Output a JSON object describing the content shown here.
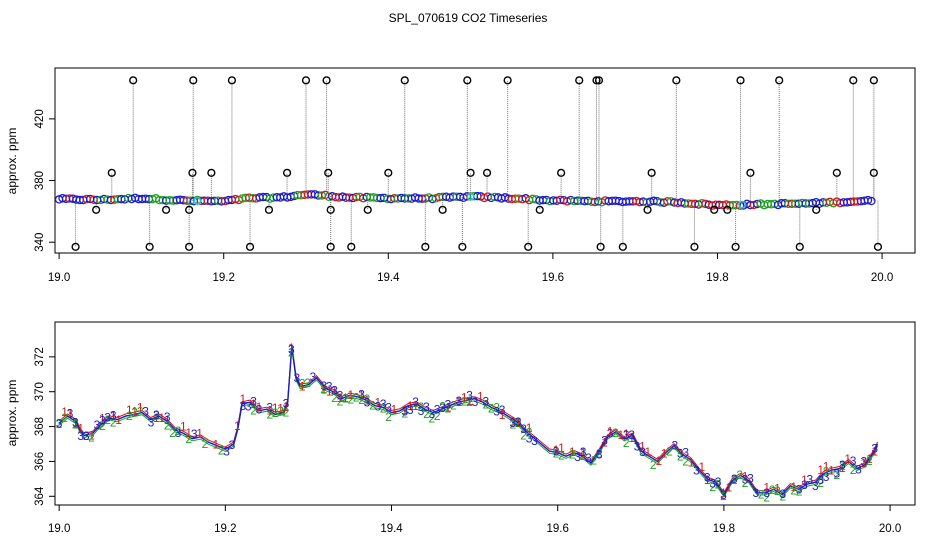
{
  "figure": {
    "title": "SPL_070619  CO2 Timeseries"
  },
  "chart_data": [
    {
      "type": "scatter",
      "panel": "top",
      "ylabel": "approx. ppm",
      "xlabel": "",
      "xlim": [
        18.995,
        20.04
      ],
      "ylim": [
        333,
        453
      ],
      "x_ticks": [
        19.0,
        19.2,
        19.4,
        19.6,
        19.8,
        20.0
      ],
      "x_tick_labels": [
        "19.0",
        "19.2",
        "19.4",
        "19.6",
        "19.8",
        "20.0"
      ],
      "y_ticks": [
        340,
        380,
        420
      ],
      "y_tick_labels": [
        "340",
        "380",
        "420"
      ],
      "baseline": {
        "x": [
          19.0,
          19.05,
          19.1,
          19.15,
          19.2,
          19.23,
          19.27,
          19.3,
          19.33,
          19.35,
          19.4,
          19.45,
          19.5,
          19.55,
          19.6,
          19.65,
          19.7,
          19.75,
          19.8,
          19.85,
          19.9,
          19.95,
          19.99
        ],
        "y": [
          368,
          367.5,
          368.5,
          367,
          366.5,
          368.5,
          369,
          371,
          370,
          369,
          368.5,
          368.5,
          369.5,
          368.5,
          367,
          366.5,
          366.5,
          366,
          364,
          364.5,
          365,
          366,
          367
        ]
      },
      "outliers_high_x": [
        19.09,
        19.163,
        19.21,
        19.3,
        19.325,
        19.42,
        19.496,
        19.545,
        19.632,
        19.653,
        19.656,
        19.75,
        19.828,
        19.875,
        19.965,
        19.99
      ],
      "outliers_high_y": 445,
      "outliers_low_x": [
        19.02,
        19.11,
        19.158,
        19.232,
        19.33,
        19.355,
        19.445,
        19.49,
        19.57,
        19.658,
        19.685,
        19.772,
        19.822,
        19.9,
        19.995
      ],
      "outliers_low_y": 337,
      "outliers_mid_x": [
        19.064,
        19.162,
        19.185,
        19.277,
        19.327,
        19.4,
        19.5,
        19.52,
        19.61,
        19.72,
        19.84,
        19.945,
        19.99
      ],
      "outliers_mid_y": 385,
      "outliers_near_x": [
        19.045,
        19.13,
        19.158,
        19.255,
        19.33,
        19.375,
        19.466,
        19.584,
        19.715,
        19.796,
        19.812,
        19.92
      ],
      "outliers_near_y": 361
    },
    {
      "type": "scatter",
      "panel": "bottom",
      "ylabel": "approx. ppm",
      "xlabel": "",
      "xlim": [
        18.995,
        20.03
      ],
      "ylim": [
        363.5,
        374.0
      ],
      "x_ticks": [
        19.0,
        19.2,
        19.4,
        19.6,
        19.8,
        20.0
      ],
      "x_tick_labels": [
        "19.0",
        "19.2",
        "19.4",
        "19.6",
        "19.8",
        "20.0"
      ],
      "y_ticks": [
        364,
        366,
        368,
        370,
        372
      ],
      "y_tick_labels": [
        "364",
        "366",
        "368",
        "370",
        "372"
      ],
      "series": [
        {
          "name": "1",
          "color": "#d11a1a"
        },
        {
          "name": "2",
          "color": "#1fa21f"
        },
        {
          "name": "3",
          "color": "#1c1ccc"
        }
      ],
      "x": [
        19.0,
        19.01,
        19.02,
        19.025,
        19.03,
        19.04,
        19.05,
        19.06,
        19.07,
        19.08,
        19.09,
        19.1,
        19.11,
        19.12,
        19.13,
        19.14,
        19.15,
        19.16,
        19.17,
        19.18,
        19.19,
        19.2,
        19.21,
        19.215,
        19.22,
        19.23,
        19.24,
        19.25,
        19.26,
        19.27,
        19.275,
        19.28,
        19.285,
        19.29,
        19.3,
        19.31,
        19.32,
        19.33,
        19.335,
        19.34,
        19.35,
        19.36,
        19.37,
        19.38,
        19.39,
        19.4,
        19.41,
        19.42,
        19.43,
        19.44,
        19.45,
        19.46,
        19.47,
        19.48,
        19.49,
        19.5,
        19.51,
        19.52,
        19.53,
        19.54,
        19.55,
        19.56,
        19.57,
        19.58,
        19.59,
        19.6,
        19.61,
        19.62,
        19.63,
        19.64,
        19.65,
        19.66,
        19.67,
        19.68,
        19.69,
        19.7,
        19.71,
        19.72,
        19.73,
        19.74,
        19.75,
        19.76,
        19.77,
        19.78,
        19.79,
        19.8,
        19.81,
        19.82,
        19.83,
        19.84,
        19.85,
        19.86,
        19.87,
        19.88,
        19.89,
        19.9,
        19.91,
        19.92,
        19.93,
        19.94,
        19.95,
        19.96,
        19.97,
        19.98,
        19.985
      ],
      "y": [
        368.2,
        368.6,
        368.3,
        367.8,
        367.5,
        367.6,
        368.1,
        368.5,
        368.4,
        368.6,
        368.7,
        368.8,
        368.4,
        368.6,
        368.3,
        367.8,
        367.6,
        367.3,
        367.4,
        367.1,
        366.9,
        366.7,
        367.0,
        367.9,
        369.3,
        369.4,
        368.9,
        369.0,
        368.7,
        368.8,
        369.4,
        372.6,
        370.8,
        370.3,
        370.4,
        370.8,
        370.2,
        370.0,
        369.8,
        369.6,
        369.8,
        369.7,
        369.5,
        369.2,
        369.1,
        368.8,
        368.9,
        369.2,
        369.3,
        369.0,
        368.8,
        369.0,
        369.2,
        369.4,
        369.5,
        369.6,
        369.4,
        369.1,
        368.9,
        368.6,
        368.3,
        367.8,
        367.4,
        367.0,
        366.6,
        366.5,
        366.3,
        366.5,
        366.3,
        365.9,
        366.6,
        367.4,
        367.7,
        367.3,
        367.5,
        366.6,
        366.3,
        366.0,
        366.5,
        366.9,
        366.4,
        366.1,
        365.5,
        365.0,
        364.8,
        364.1,
        364.9,
        365.2,
        364.9,
        364.2,
        364.2,
        364.4,
        364.1,
        364.6,
        364.4,
        364.7,
        364.8,
        365.3,
        365.5,
        365.6,
        366.0,
        365.6,
        365.8,
        366.5,
        367.0
      ]
    }
  ]
}
